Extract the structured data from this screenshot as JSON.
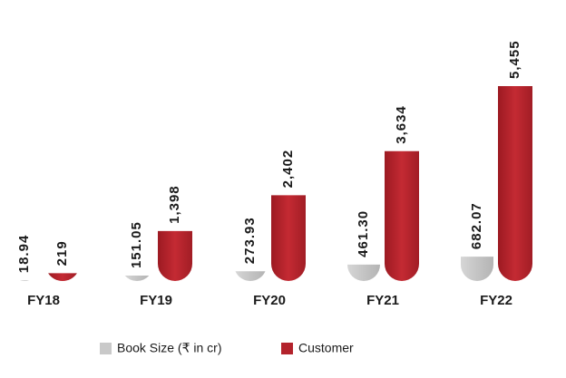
{
  "chart_data": {
    "type": "bar",
    "categories": [
      "FY18",
      "FY19",
      "FY20",
      "FY21",
      "FY22"
    ],
    "series": [
      {
        "name": "Book Size (₹ in cr)",
        "color": "#c9c9c9",
        "values": [
          18.94,
          151.05,
          273.93,
          461.3,
          682.07
        ],
        "value_labels": [
          "18.94",
          "151.05",
          "273.93",
          "461.30",
          "682.07"
        ]
      },
      {
        "name": "Customer",
        "color": "#b3232c",
        "values": [
          219,
          1398,
          2402,
          3634,
          5455
        ],
        "value_labels": [
          "219",
          "1,398",
          "2,402",
          "3,634",
          "5,455"
        ]
      }
    ]
  }
}
